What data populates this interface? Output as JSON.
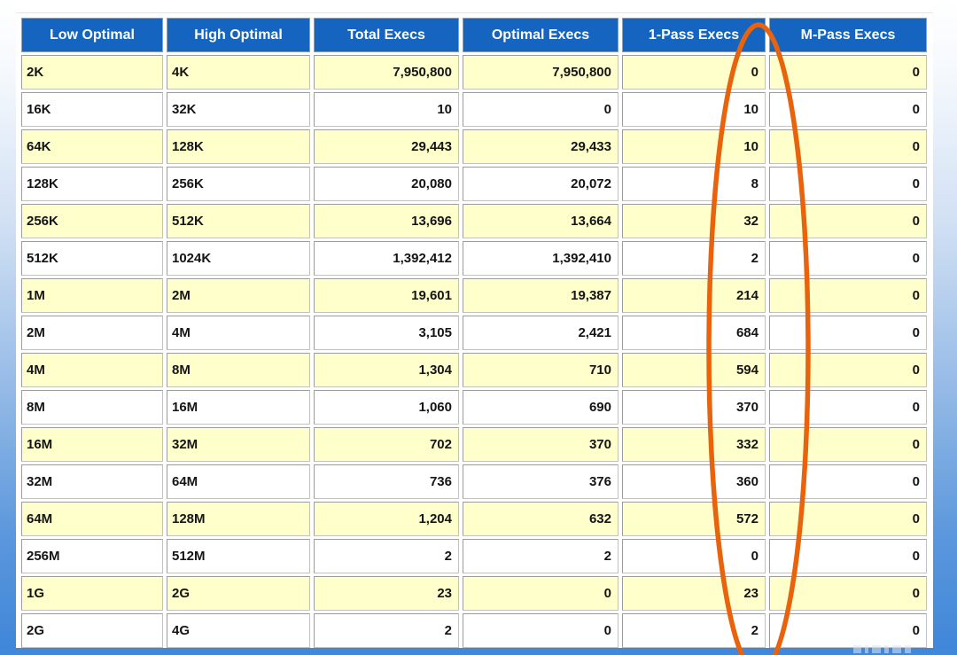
{
  "table": {
    "name": "pga-workarea-histogram",
    "columns": [
      "Low Optimal",
      "High Optimal",
      "Total Execs",
      "Optimal Execs",
      "1-Pass Execs",
      "M-Pass Execs"
    ],
    "rows": [
      [
        "2K",
        "4K",
        "7,950,800",
        "7,950,800",
        "0",
        "0"
      ],
      [
        "16K",
        "32K",
        "10",
        "0",
        "10",
        "0"
      ],
      [
        "64K",
        "128K",
        "29,443",
        "29,433",
        "10",
        "0"
      ],
      [
        "128K",
        "256K",
        "20,080",
        "20,072",
        "8",
        "0"
      ],
      [
        "256K",
        "512K",
        "13,696",
        "13,664",
        "32",
        "0"
      ],
      [
        "512K",
        "1024K",
        "1,392,412",
        "1,392,410",
        "2",
        "0"
      ],
      [
        "1M",
        "2M",
        "19,601",
        "19,387",
        "214",
        "0"
      ],
      [
        "2M",
        "4M",
        "3,105",
        "2,421",
        "684",
        "0"
      ],
      [
        "4M",
        "8M",
        "1,304",
        "710",
        "594",
        "0"
      ],
      [
        "8M",
        "16M",
        "1,060",
        "690",
        "370",
        "0"
      ],
      [
        "16M",
        "32M",
        "702",
        "370",
        "332",
        "0"
      ],
      [
        "32M",
        "64M",
        "736",
        "376",
        "360",
        "0"
      ],
      [
        "64M",
        "128M",
        "1,204",
        "632",
        "572",
        "0"
      ],
      [
        "256M",
        "512M",
        "2",
        "2",
        "0",
        "0"
      ],
      [
        "1G",
        "2G",
        "23",
        "0",
        "23",
        "0"
      ],
      [
        "2G",
        "4G",
        "2",
        "0",
        "2",
        "0"
      ]
    ]
  },
  "annotation": {
    "shape": "ellipse",
    "target_column": "1-Pass Execs",
    "color": "#e8630c"
  },
  "colors": {
    "header_bg": "#1565c0",
    "row_alt_bg": "#ffffcc",
    "bottom_bar": "#4187da"
  }
}
